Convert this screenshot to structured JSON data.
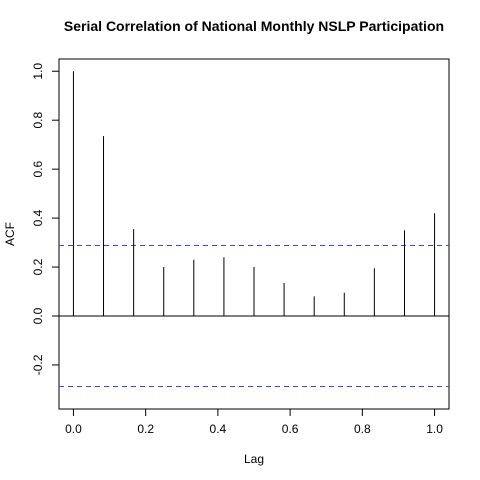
{
  "chart_data": {
    "type": "acf",
    "title": "Serial Correlation of National Monthly NSLP Participation",
    "xlabel": "Lag",
    "ylabel": "ACF",
    "xlim": [
      -0.04,
      1.04
    ],
    "ylim": [
      -0.38,
      1.05
    ],
    "x_ticks": [
      "0.0",
      "0.2",
      "0.4",
      "0.6",
      "0.8",
      "1.0"
    ],
    "y_ticks": [
      "-0.2",
      "0.0",
      "0.2",
      "0.4",
      "0.6",
      "0.8",
      "1.0"
    ],
    "lags": [
      0,
      0.0833,
      0.1667,
      0.25,
      0.3333,
      0.4167,
      0.5,
      0.5833,
      0.6667,
      0.75,
      0.8333,
      0.9167,
      1.0
    ],
    "values": [
      1.0,
      0.735,
      0.355,
      0.2,
      0.23,
      0.24,
      0.2,
      0.135,
      0.08,
      0.095,
      0.195,
      0.35,
      0.42
    ],
    "confidence_bound": 0.288,
    "zero_line": true,
    "colors": {
      "bars": "#000000",
      "confidence": "#4444cc",
      "frame": "#000000"
    }
  }
}
